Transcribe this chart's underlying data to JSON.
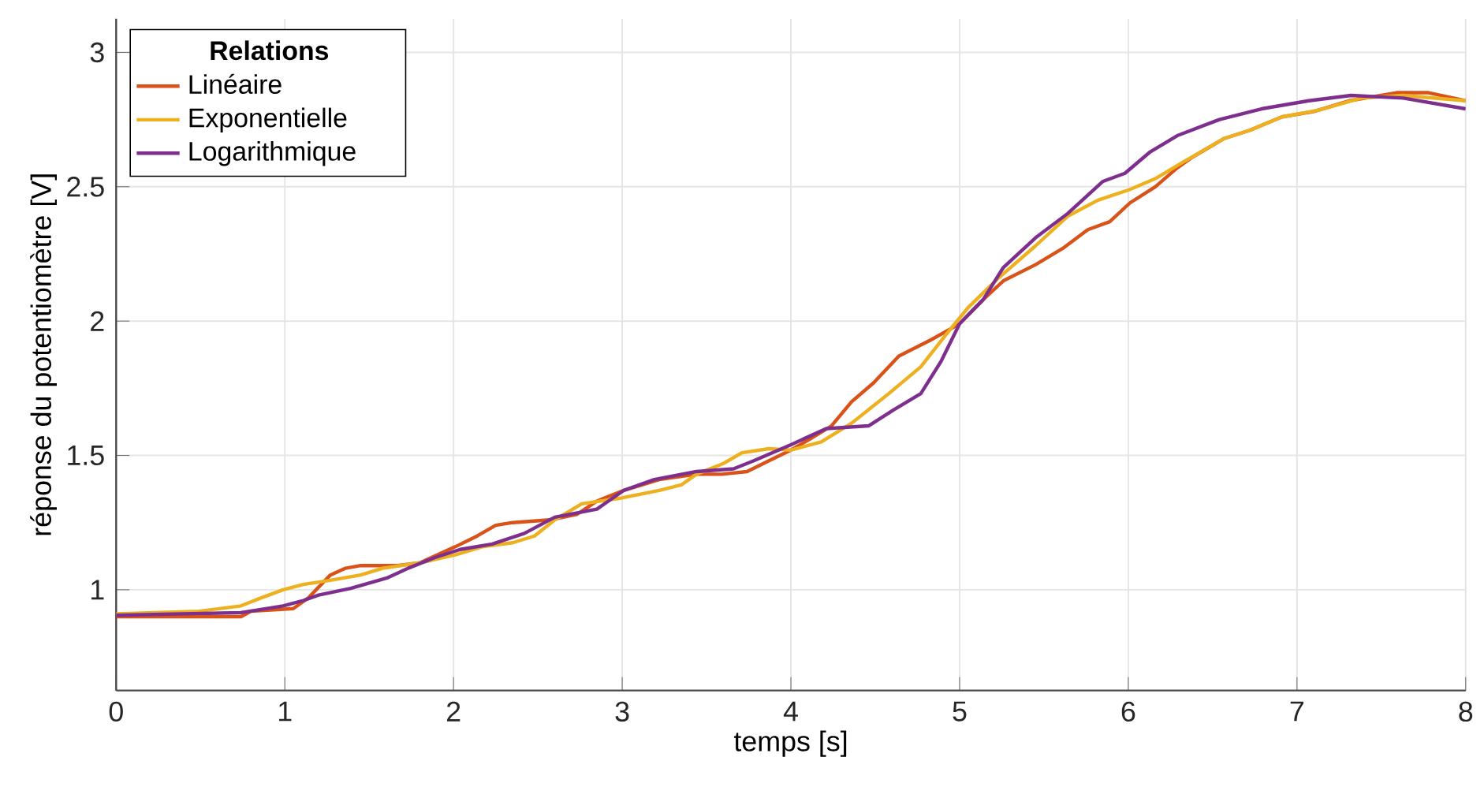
{
  "chart_data": {
    "type": "line",
    "xlabel": "temps  [s]",
    "ylabel": "réponse du potentiomètre  [V]",
    "legend_title": "Relations",
    "legend": "top left",
    "grid": true,
    "xlim": [
      0,
      8
    ],
    "ylim": [
      0.625,
      3.125
    ],
    "xticks": [
      0,
      1,
      2,
      3,
      4,
      5,
      6,
      7,
      8
    ],
    "yticks": [
      1,
      1.5,
      2,
      2.5,
      3
    ],
    "series": [
      {
        "name": "Linéaire",
        "color": "#d95319",
        "x": [
          0,
          0.74,
          0.8,
          1.05,
          1.14,
          1.27,
          1.36,
          1.45,
          1.67,
          1.8,
          2.01,
          2.14,
          2.25,
          2.35,
          2.57,
          2.73,
          2.85,
          3.01,
          3.22,
          3.44,
          3.59,
          3.74,
          3.87,
          4.0,
          4.11,
          4.24,
          4.36,
          4.49,
          4.64,
          4.83,
          5.0,
          5.14,
          5.26,
          5.45,
          5.61,
          5.76,
          5.89,
          6.01,
          6.16,
          6.29,
          6.38,
          6.57,
          6.72,
          6.91,
          7.1,
          7.31,
          7.59,
          7.78,
          8.0
        ],
        "values": [
          0.9,
          0.9,
          0.92,
          0.93,
          0.97,
          1.055,
          1.08,
          1.09,
          1.09,
          1.1,
          1.16,
          1.2,
          1.24,
          1.25,
          1.26,
          1.28,
          1.33,
          1.37,
          1.41,
          1.43,
          1.43,
          1.44,
          1.48,
          1.52,
          1.56,
          1.61,
          1.7,
          1.77,
          1.87,
          1.93,
          1.99,
          2.08,
          2.15,
          2.21,
          2.27,
          2.34,
          2.37,
          2.44,
          2.5,
          2.57,
          2.61,
          2.68,
          2.71,
          2.76,
          2.78,
          2.82,
          2.85,
          2.85,
          2.82
        ]
      },
      {
        "name": "Exponentielle",
        "color": "#edb120",
        "x": [
          0,
          0.49,
          0.74,
          0.86,
          0.99,
          1.11,
          1.27,
          1.45,
          1.58,
          1.8,
          2.01,
          2.17,
          2.35,
          2.48,
          2.6,
          2.76,
          2.98,
          3.22,
          3.35,
          3.44,
          3.6,
          3.71,
          3.87,
          4.0,
          4.18,
          4.36,
          4.58,
          4.77,
          4.92,
          5.05,
          5.23,
          5.45,
          5.64,
          5.82,
          6.01,
          6.16,
          6.32,
          6.57,
          6.72,
          6.91,
          7.13,
          7.38,
          7.63,
          8.0
        ],
        "values": [
          0.91,
          0.92,
          0.94,
          0.97,
          1.0,
          1.02,
          1.035,
          1.055,
          1.08,
          1.1,
          1.13,
          1.16,
          1.175,
          1.2,
          1.26,
          1.32,
          1.34,
          1.37,
          1.39,
          1.43,
          1.47,
          1.51,
          1.525,
          1.52,
          1.55,
          1.62,
          1.73,
          1.83,
          1.95,
          2.05,
          2.16,
          2.28,
          2.39,
          2.45,
          2.49,
          2.53,
          2.59,
          2.68,
          2.71,
          2.76,
          2.785,
          2.83,
          2.84,
          2.82
        ]
      },
      {
        "name": "Logarithmique",
        "color": "#7e2f8e",
        "x": [
          0,
          0.74,
          0.99,
          1.11,
          1.2,
          1.39,
          1.61,
          1.73,
          1.89,
          2.04,
          2.23,
          2.42,
          2.6,
          2.85,
          3.01,
          3.19,
          3.44,
          3.66,
          3.78,
          4.0,
          4.21,
          4.46,
          4.61,
          4.77,
          4.89,
          5.0,
          5.14,
          5.26,
          5.45,
          5.64,
          5.85,
          5.98,
          6.13,
          6.29,
          6.54,
          6.79,
          7.07,
          7.32,
          7.63,
          8.0
        ],
        "values": [
          0.905,
          0.915,
          0.94,
          0.96,
          0.98,
          1.005,
          1.045,
          1.08,
          1.12,
          1.15,
          1.17,
          1.21,
          1.27,
          1.3,
          1.37,
          1.41,
          1.44,
          1.45,
          1.48,
          1.54,
          1.6,
          1.61,
          1.67,
          1.73,
          1.85,
          1.99,
          2.08,
          2.2,
          2.31,
          2.4,
          2.52,
          2.55,
          2.63,
          2.69,
          2.75,
          2.79,
          2.82,
          2.84,
          2.83,
          2.79
        ]
      }
    ]
  }
}
